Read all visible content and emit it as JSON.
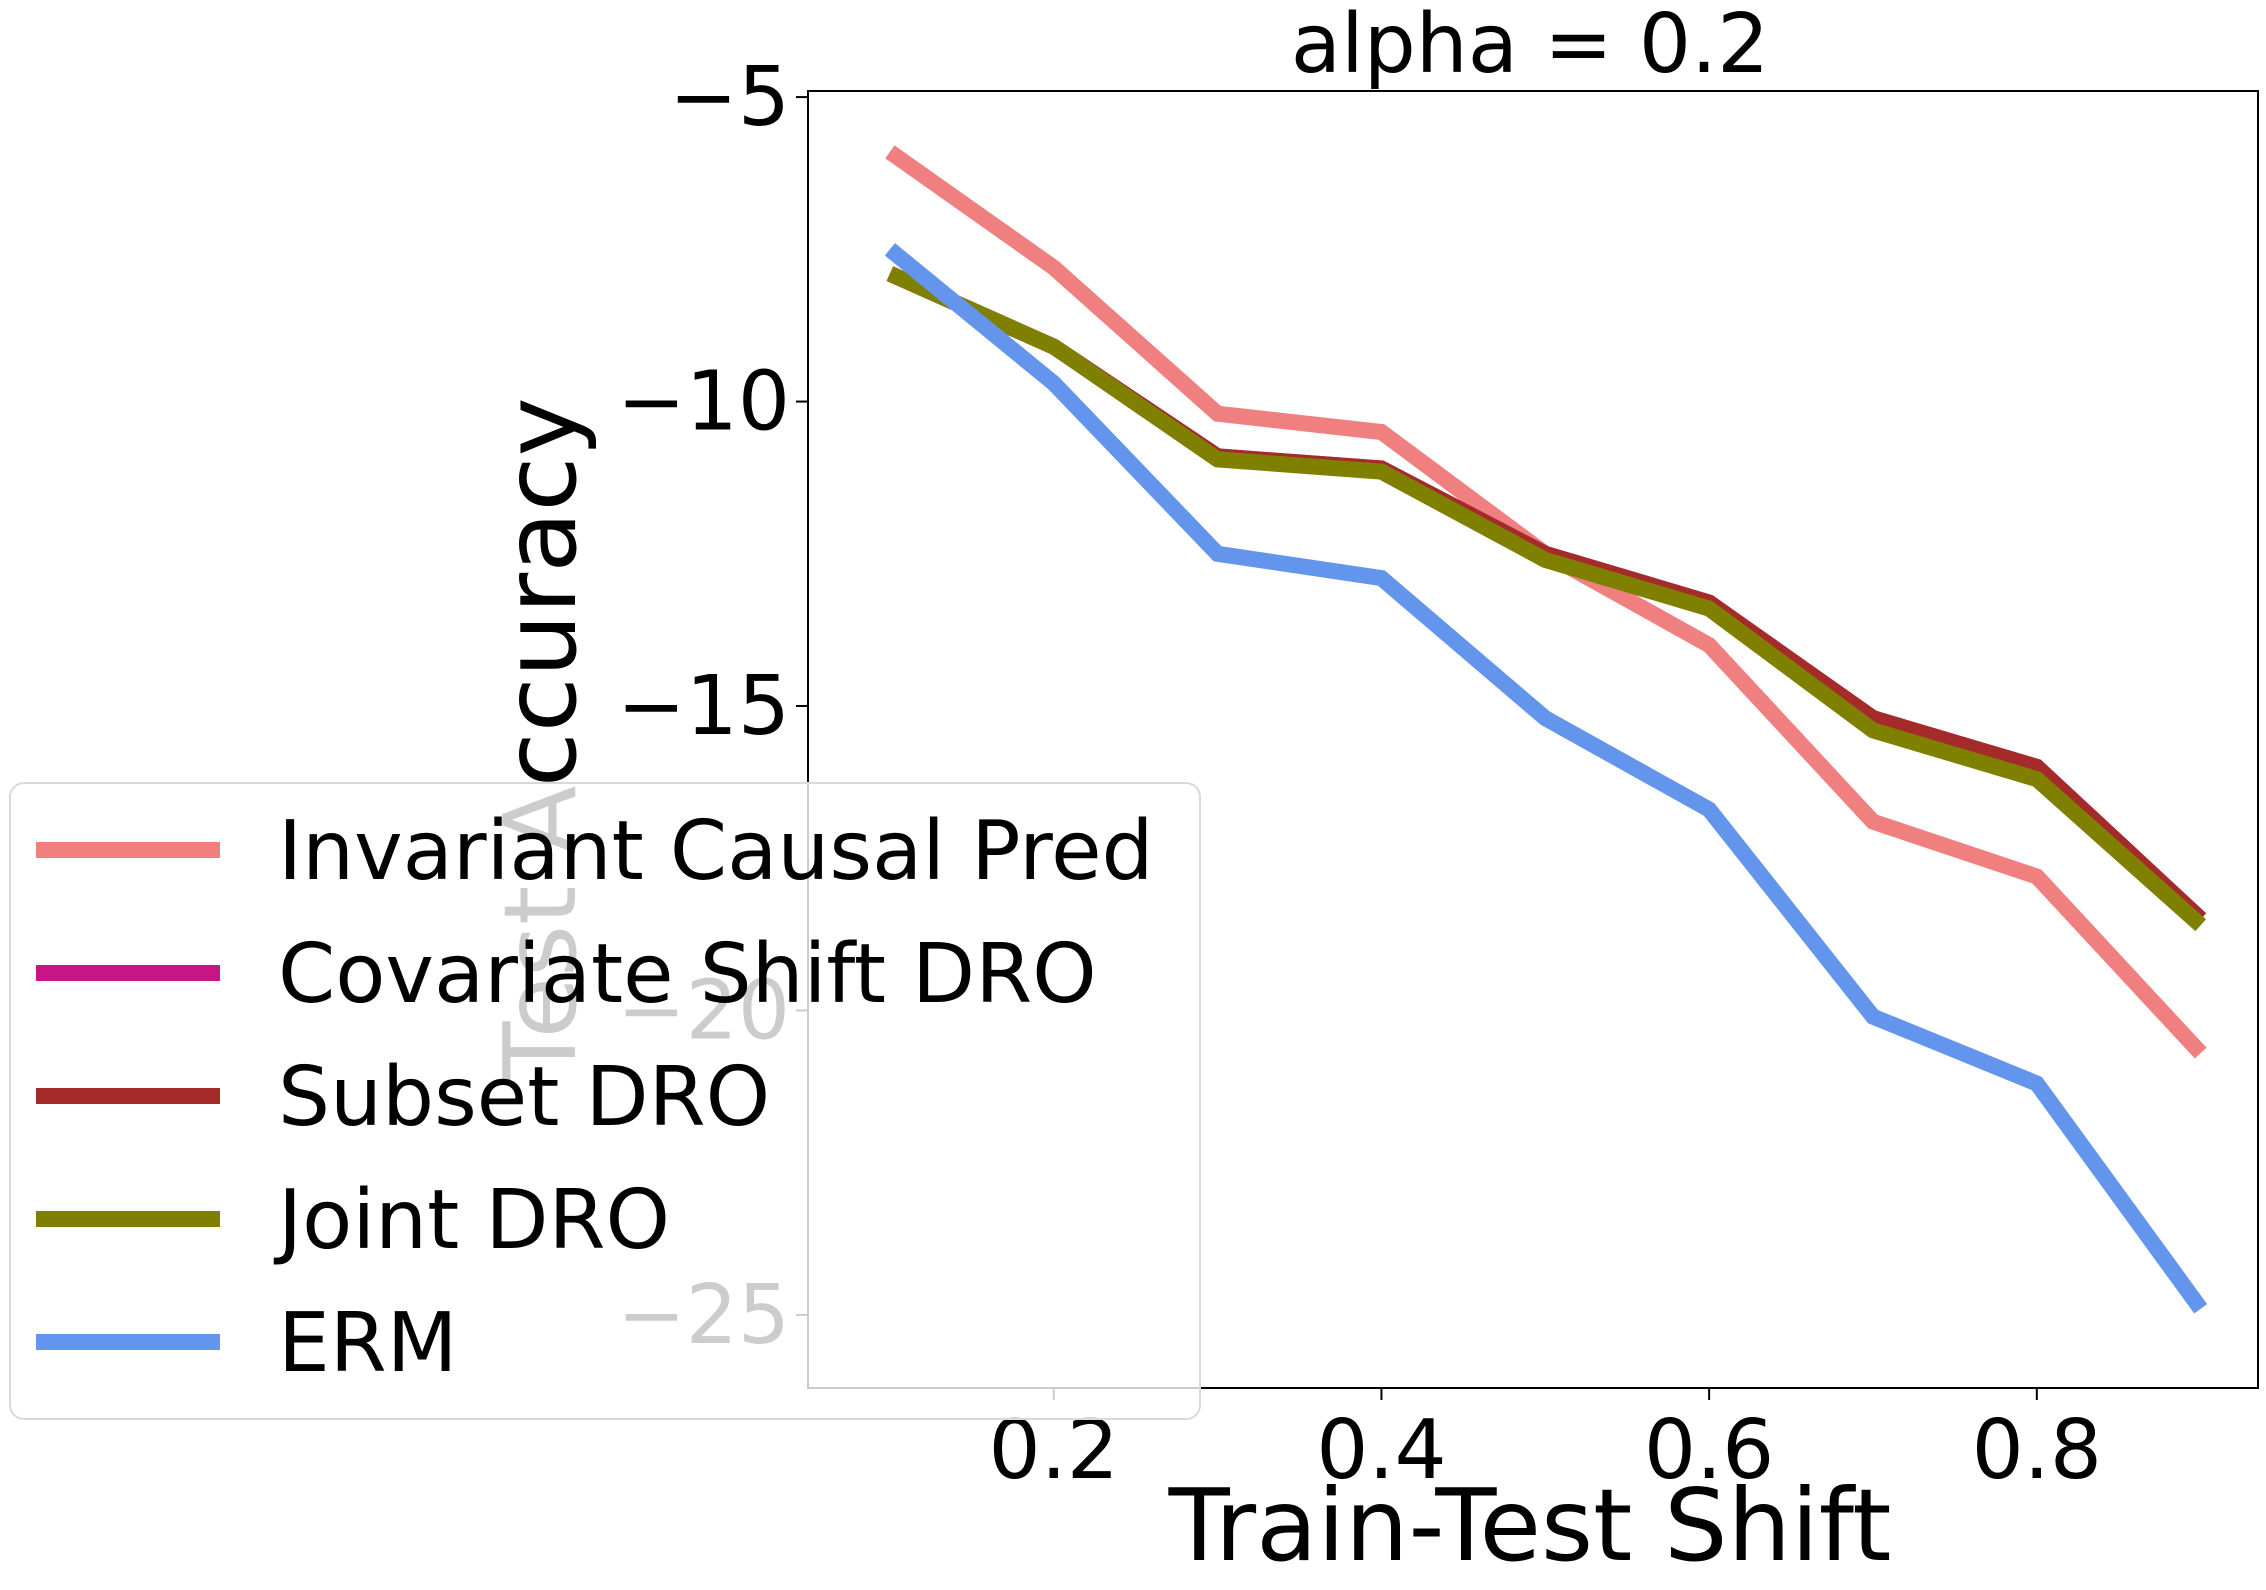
{
  "chart_data": {
    "type": "line",
    "title": "alpha = 0.2",
    "xlabel": "Train-Test Shift",
    "ylabel": "Test Accuracy",
    "x": [
      0.1,
      0.2,
      0.3,
      0.4,
      0.5,
      0.6,
      0.7,
      0.8,
      0.9
    ],
    "xlim": [
      0.05,
      0.935
    ],
    "ylim": [
      -26.2,
      -4.9
    ],
    "xticks": [
      0.2,
      0.4,
      0.6,
      0.8
    ],
    "xtick_labels": [
      "0.2",
      "0.4",
      "0.6",
      "0.8"
    ],
    "yticks": [
      -5,
      -10,
      -15,
      -20,
      -25
    ],
    "ytick_labels": [
      "−5",
      "−10",
      "−15",
      "−20",
      "−25"
    ],
    "grid": false,
    "legend_position": "lower-left",
    "series": [
      {
        "name": "Invariant Causal Pred",
        "color": "#f08080",
        "values": [
          -5.9,
          -7.8,
          -10.2,
          -10.5,
          -12.5,
          -14.0,
          -16.9,
          -17.8,
          -20.7
        ]
      },
      {
        "name": "Covariate Shift DRO",
        "color": "#c71585",
        "values": [
          -7.9,
          -9.1,
          -10.9,
          -11.1,
          -12.5,
          -13.3,
          -15.2,
          -16.0,
          -18.5
        ]
      },
      {
        "name": "Subset DRO",
        "color": "#a52a2a",
        "values": [
          -7.9,
          -9.1,
          -10.9,
          -11.1,
          -12.5,
          -13.3,
          -15.2,
          -16.0,
          -18.5
        ]
      },
      {
        "name": "Joint DRO",
        "color": "#808000",
        "values": [
          -7.9,
          -9.1,
          -10.95,
          -11.15,
          -12.6,
          -13.4,
          -15.4,
          -16.2,
          -18.6
        ]
      },
      {
        "name": "ERM",
        "color": "#6495ed",
        "values": [
          -7.5,
          -9.7,
          -12.5,
          -12.9,
          -15.2,
          -16.7,
          -20.1,
          -21.2,
          -24.9
        ]
      }
    ]
  }
}
